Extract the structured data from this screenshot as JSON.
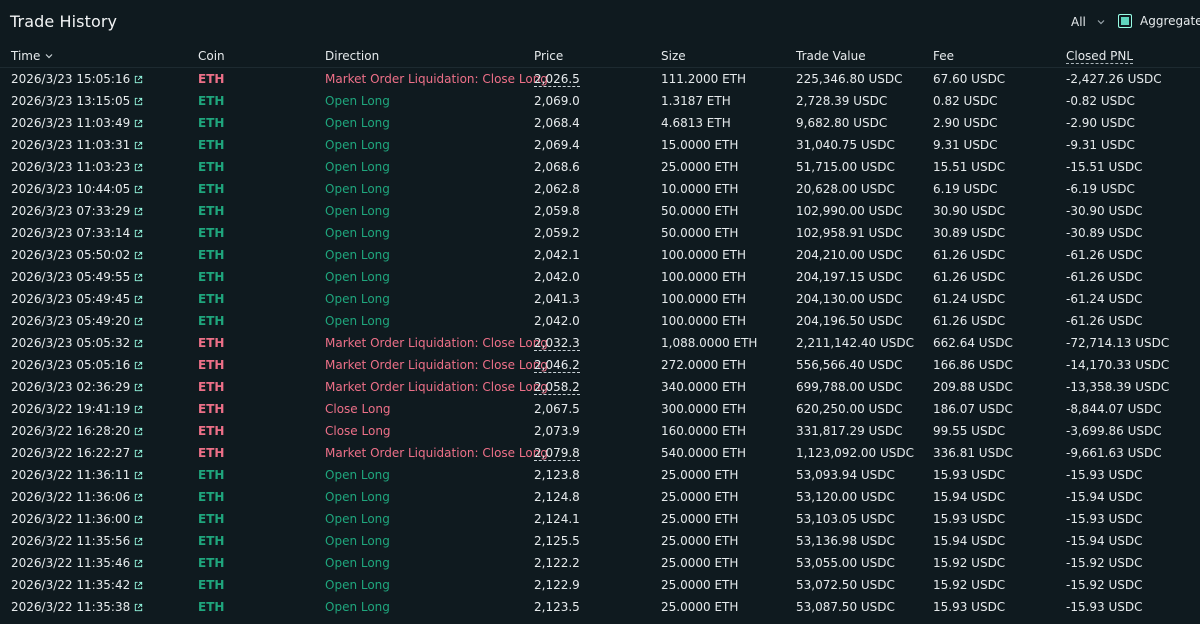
{
  "header": {
    "title": "Trade History",
    "filter_value": "All",
    "aggregate_label": "Aggregate"
  },
  "columns": {
    "time": "Time",
    "coin": "Coin",
    "direction": "Direction",
    "price": "Price",
    "size": "Size",
    "trade_value": "Trade Value",
    "fee": "Fee",
    "closed_pnl": "Closed PNL"
  },
  "colors": {
    "background": "#0f1a1f",
    "long": "#1fa67d",
    "short": "#ed7088",
    "accent": "#5fd4bd"
  },
  "trades": [
    {
      "time": "2026/3/23 15:05:16",
      "coin": "ETH",
      "direction": "Market Order Liquidation: Close Long",
      "side": "close",
      "price": "2,026.5",
      "price_dashed": true,
      "size": "111.2000 ETH",
      "value": "225,346.80 USDC",
      "fee": "67.60 USDC",
      "pnl": "-2,427.26 USDC"
    },
    {
      "time": "2026/3/23 13:15:05",
      "coin": "ETH",
      "direction": "Open Long",
      "side": "open",
      "price": "2,069.0",
      "price_dashed": false,
      "size": "1.3187 ETH",
      "value": "2,728.39 USDC",
      "fee": "0.82 USDC",
      "pnl": "-0.82 USDC"
    },
    {
      "time": "2026/3/23 11:03:49",
      "coin": "ETH",
      "direction": "Open Long",
      "side": "open",
      "price": "2,068.4",
      "price_dashed": false,
      "size": "4.6813 ETH",
      "value": "9,682.80 USDC",
      "fee": "2.90 USDC",
      "pnl": "-2.90 USDC"
    },
    {
      "time": "2026/3/23 11:03:31",
      "coin": "ETH",
      "direction": "Open Long",
      "side": "open",
      "price": "2,069.4",
      "price_dashed": false,
      "size": "15.0000 ETH",
      "value": "31,040.75 USDC",
      "fee": "9.31 USDC",
      "pnl": "-9.31 USDC"
    },
    {
      "time": "2026/3/23 11:03:23",
      "coin": "ETH",
      "direction": "Open Long",
      "side": "open",
      "price": "2,068.6",
      "price_dashed": false,
      "size": "25.0000 ETH",
      "value": "51,715.00 USDC",
      "fee": "15.51 USDC",
      "pnl": "-15.51 USDC"
    },
    {
      "time": "2026/3/23 10:44:05",
      "coin": "ETH",
      "direction": "Open Long",
      "side": "open",
      "price": "2,062.8",
      "price_dashed": false,
      "size": "10.0000 ETH",
      "value": "20,628.00 USDC",
      "fee": "6.19 USDC",
      "pnl": "-6.19 USDC"
    },
    {
      "time": "2026/3/23 07:33:29",
      "coin": "ETH",
      "direction": "Open Long",
      "side": "open",
      "price": "2,059.8",
      "price_dashed": false,
      "size": "50.0000 ETH",
      "value": "102,990.00 USDC",
      "fee": "30.90 USDC",
      "pnl": "-30.90 USDC"
    },
    {
      "time": "2026/3/23 07:33:14",
      "coin": "ETH",
      "direction": "Open Long",
      "side": "open",
      "price": "2,059.2",
      "price_dashed": false,
      "size": "50.0000 ETH",
      "value": "102,958.91 USDC",
      "fee": "30.89 USDC",
      "pnl": "-30.89 USDC"
    },
    {
      "time": "2026/3/23 05:50:02",
      "coin": "ETH",
      "direction": "Open Long",
      "side": "open",
      "price": "2,042.1",
      "price_dashed": false,
      "size": "100.0000 ETH",
      "value": "204,210.00 USDC",
      "fee": "61.26 USDC",
      "pnl": "-61.26 USDC"
    },
    {
      "time": "2026/3/23 05:49:55",
      "coin": "ETH",
      "direction": "Open Long",
      "side": "open",
      "price": "2,042.0",
      "price_dashed": false,
      "size": "100.0000 ETH",
      "value": "204,197.15 USDC",
      "fee": "61.26 USDC",
      "pnl": "-61.26 USDC"
    },
    {
      "time": "2026/3/23 05:49:45",
      "coin": "ETH",
      "direction": "Open Long",
      "side": "open",
      "price": "2,041.3",
      "price_dashed": false,
      "size": "100.0000 ETH",
      "value": "204,130.00 USDC",
      "fee": "61.24 USDC",
      "pnl": "-61.24 USDC"
    },
    {
      "time": "2026/3/23 05:49:20",
      "coin": "ETH",
      "direction": "Open Long",
      "side": "open",
      "price": "2,042.0",
      "price_dashed": false,
      "size": "100.0000 ETH",
      "value": "204,196.50 USDC",
      "fee": "61.26 USDC",
      "pnl": "-61.26 USDC"
    },
    {
      "time": "2026/3/23 05:05:32",
      "coin": "ETH",
      "direction": "Market Order Liquidation: Close Long",
      "side": "close",
      "price": "2,032.3",
      "price_dashed": true,
      "size": "1,088.0000 ETH",
      "value": "2,211,142.40 USDC",
      "fee": "662.64 USDC",
      "pnl": "-72,714.13 USDC"
    },
    {
      "time": "2026/3/23 05:05:16",
      "coin": "ETH",
      "direction": "Market Order Liquidation: Close Long",
      "side": "close",
      "price": "2,046.2",
      "price_dashed": true,
      "size": "272.0000 ETH",
      "value": "556,566.40 USDC",
      "fee": "166.86 USDC",
      "pnl": "-14,170.33 USDC"
    },
    {
      "time": "2026/3/23 02:36:29",
      "coin": "ETH",
      "direction": "Market Order Liquidation: Close Long",
      "side": "close",
      "price": "2,058.2",
      "price_dashed": true,
      "size": "340.0000 ETH",
      "value": "699,788.00 USDC",
      "fee": "209.88 USDC",
      "pnl": "-13,358.39 USDC"
    },
    {
      "time": "2026/3/22 19:41:19",
      "coin": "ETH",
      "direction": "Close Long",
      "side": "close",
      "price": "2,067.5",
      "price_dashed": false,
      "size": "300.0000 ETH",
      "value": "620,250.00 USDC",
      "fee": "186.07 USDC",
      "pnl": "-8,844.07 USDC"
    },
    {
      "time": "2026/3/22 16:28:20",
      "coin": "ETH",
      "direction": "Close Long",
      "side": "close",
      "price": "2,073.9",
      "price_dashed": false,
      "size": "160.0000 ETH",
      "value": "331,817.29 USDC",
      "fee": "99.55 USDC",
      "pnl": "-3,699.86 USDC"
    },
    {
      "time": "2026/3/22 16:22:27",
      "coin": "ETH",
      "direction": "Market Order Liquidation: Close Long",
      "side": "close",
      "price": "2,079.8",
      "price_dashed": true,
      "size": "540.0000 ETH",
      "value": "1,123,092.00 USDC",
      "fee": "336.81 USDC",
      "pnl": "-9,661.63 USDC"
    },
    {
      "time": "2026/3/22 11:36:11",
      "coin": "ETH",
      "direction": "Open Long",
      "side": "open",
      "price": "2,123.8",
      "price_dashed": false,
      "size": "25.0000 ETH",
      "value": "53,093.94 USDC",
      "fee": "15.93 USDC",
      "pnl": "-15.93 USDC"
    },
    {
      "time": "2026/3/22 11:36:06",
      "coin": "ETH",
      "direction": "Open Long",
      "side": "open",
      "price": "2,124.8",
      "price_dashed": false,
      "size": "25.0000 ETH",
      "value": "53,120.00 USDC",
      "fee": "15.94 USDC",
      "pnl": "-15.94 USDC"
    },
    {
      "time": "2026/3/22 11:36:00",
      "coin": "ETH",
      "direction": "Open Long",
      "side": "open",
      "price": "2,124.1",
      "price_dashed": false,
      "size": "25.0000 ETH",
      "value": "53,103.05 USDC",
      "fee": "15.93 USDC",
      "pnl": "-15.93 USDC"
    },
    {
      "time": "2026/3/22 11:35:56",
      "coin": "ETH",
      "direction": "Open Long",
      "side": "open",
      "price": "2,125.5",
      "price_dashed": false,
      "size": "25.0000 ETH",
      "value": "53,136.98 USDC",
      "fee": "15.94 USDC",
      "pnl": "-15.94 USDC"
    },
    {
      "time": "2026/3/22 11:35:46",
      "coin": "ETH",
      "direction": "Open Long",
      "side": "open",
      "price": "2,122.2",
      "price_dashed": false,
      "size": "25.0000 ETH",
      "value": "53,055.00 USDC",
      "fee": "15.92 USDC",
      "pnl": "-15.92 USDC"
    },
    {
      "time": "2026/3/22 11:35:42",
      "coin": "ETH",
      "direction": "Open Long",
      "side": "open",
      "price": "2,122.9",
      "price_dashed": false,
      "size": "25.0000 ETH",
      "value": "53,072.50 USDC",
      "fee": "15.92 USDC",
      "pnl": "-15.92 USDC"
    },
    {
      "time": "2026/3/22 11:35:38",
      "coin": "ETH",
      "direction": "Open Long",
      "side": "open",
      "price": "2,123.5",
      "price_dashed": false,
      "size": "25.0000 ETH",
      "value": "53,087.50 USDC",
      "fee": "15.93 USDC",
      "pnl": "-15.93 USDC"
    }
  ]
}
